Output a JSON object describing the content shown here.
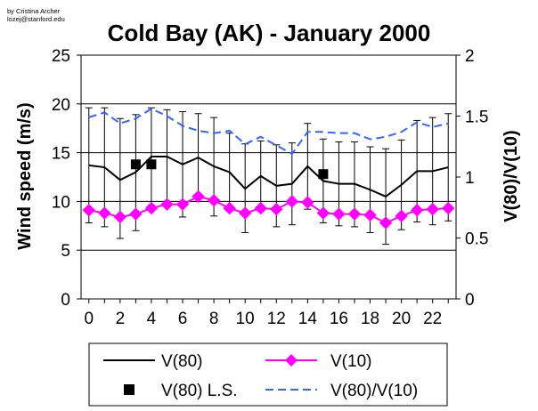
{
  "credit": {
    "line1": "by Cristina Archer",
    "line2": "lozej@stanford.edu"
  },
  "chart_data": {
    "type": "line",
    "title": "Cold Bay (AK) - January 2000",
    "xlabel": "",
    "ylabel": "Wind speed (m/s)",
    "y2label": "V(80)/V(10)",
    "x": [
      0,
      1,
      2,
      3,
      4,
      5,
      6,
      7,
      8,
      9,
      10,
      11,
      12,
      13,
      14,
      15,
      16,
      17,
      18,
      19,
      20,
      21,
      22,
      23
    ],
    "xticks": [
      0,
      2,
      4,
      6,
      8,
      10,
      12,
      14,
      16,
      18,
      20,
      22
    ],
    "xlim": [
      -0.5,
      23.5
    ],
    "ylim": [
      0,
      25
    ],
    "yticks": [
      0,
      5,
      10,
      15,
      20,
      25
    ],
    "y2lim": [
      0,
      2
    ],
    "y2ticks": [
      "0",
      "0.5",
      "1",
      "1.5",
      "2"
    ],
    "y2tickvalues": [
      0,
      0.5,
      1,
      1.5,
      2
    ],
    "grid": "horizontal",
    "legend_position": "bottom",
    "series": [
      {
        "name": "V(80)",
        "axis": "left",
        "style": "solid",
        "color": "#000000",
        "values": [
          13.7,
          13.5,
          12.2,
          13.0,
          14.6,
          14.6,
          13.8,
          14.5,
          13.6,
          13.0,
          11.3,
          12.6,
          11.6,
          11.8,
          13.6,
          12.1,
          11.8,
          11.8,
          11.2,
          10.5,
          11.7,
          13.1,
          13.1,
          13.5
        ],
        "error_upper": [
          19.6,
          19.6,
          18.5,
          18.9,
          19.6,
          19.4,
          19.2,
          19.0,
          18.6,
          17.0,
          15.9,
          16.2,
          15.8,
          16.0,
          18.0,
          16.4,
          16.1,
          16.1,
          15.6,
          15.4,
          16.3,
          18.3,
          18.6,
          19.0
        ],
        "error_lower": [
          7.8,
          7.4,
          6.2,
          7.0,
          9.6,
          9.8,
          8.4,
          10.0,
          8.5,
          9.0,
          6.8,
          9.0,
          7.4,
          7.6,
          9.2,
          7.8,
          7.5,
          7.4,
          6.8,
          5.6,
          7.1,
          7.9,
          7.6,
          8.0
        ]
      },
      {
        "name": "V(10)",
        "axis": "left",
        "style": "solid",
        "marker": "diamond",
        "color": "#ff00ff",
        "values": [
          9.1,
          8.8,
          8.4,
          8.7,
          9.3,
          9.7,
          9.7,
          10.5,
          10.1,
          9.3,
          8.8,
          9.3,
          9.2,
          10.0,
          9.9,
          8.8,
          8.7,
          8.7,
          8.6,
          7.8,
          8.5,
          9.1,
          9.2,
          9.3
        ]
      },
      {
        "name": "V(80) L.S.",
        "axis": "left",
        "style": "marker-only",
        "marker": "square",
        "color": "#000000",
        "x": [
          3,
          4,
          15
        ],
        "values": [
          13.8,
          13.8,
          12.8
        ]
      },
      {
        "name": "V(80)/V(10)",
        "axis": "right",
        "style": "dashed",
        "color": "#3366ff",
        "values": [
          1.49,
          1.53,
          1.44,
          1.48,
          1.56,
          1.5,
          1.42,
          1.38,
          1.36,
          1.38,
          1.27,
          1.33,
          1.26,
          1.19,
          1.37,
          1.37,
          1.36,
          1.36,
          1.31,
          1.33,
          1.37,
          1.45,
          1.41,
          1.44
        ]
      }
    ]
  },
  "legend": {
    "items": [
      {
        "label": "V(80)",
        "symbol": "line",
        "color": "#000000"
      },
      {
        "label": "V(10)",
        "symbol": "diamond-line",
        "color": "#ff00ff"
      },
      {
        "label": "V(80) L.S.",
        "symbol": "square",
        "color": "#000000"
      },
      {
        "label": "V(80)/V(10)",
        "symbol": "dashed",
        "color": "#3366ff"
      }
    ]
  }
}
